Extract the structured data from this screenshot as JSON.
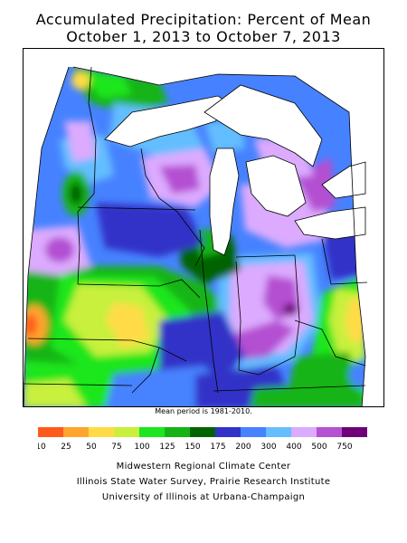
{
  "title": {
    "line1": "Accumulated Precipitation: Percent of Mean",
    "line2": "October 1, 2013 to October 7, 2013"
  },
  "note": "Mean period is 1981-2010.",
  "legend": {
    "labels": [
      "10",
      "25",
      "50",
      "75",
      "100",
      "125",
      "150",
      "175",
      "200",
      "300",
      "400",
      "500",
      "750"
    ],
    "colors": [
      "#ff5a1e",
      "#ffa52d",
      "#ffdc46",
      "#c8f03c",
      "#1ee61e",
      "#14b414",
      "#006400",
      "#3232c8",
      "#4682ff",
      "#64beff",
      "#dcaaff",
      "#b450d2",
      "#6e0078"
    ]
  },
  "credits": {
    "line1": "Midwestern Regional Climate Center",
    "line2": "Illinois State Water Survey, Prairie Research Institute",
    "line3": "University of Illinois at Urbana-Champaign"
  }
}
